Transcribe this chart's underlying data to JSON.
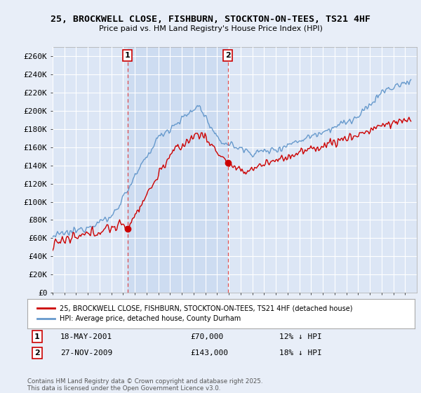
{
  "title": "25, BROCKWELL CLOSE, FISHBURN, STOCKTON-ON-TEES, TS21 4HF",
  "subtitle": "Price paid vs. HM Land Registry's House Price Index (HPI)",
  "bg_color": "#e8eef8",
  "plot_bg_color": "#dce6f5",
  "shade_color": "#c8d8f0",
  "grid_color": "#ffffff",
  "red_line_color": "#cc0000",
  "blue_line_color": "#6699cc",
  "sale1_year": 2001.38,
  "sale1_price": 70000,
  "sale2_year": 2009.91,
  "sale2_price": 143000,
  "ylim_max": 270000,
  "ylim_min": 0,
  "ytick_step": 20000,
  "legend_label_red": "25, BROCKWELL CLOSE, FISHBURN, STOCKTON-ON-TEES, TS21 4HF (detached house)",
  "legend_label_blue": "HPI: Average price, detached house, County Durham",
  "annotation1_date": "18-MAY-2001",
  "annotation1_price": "£70,000",
  "annotation1_pct": "12% ↓ HPI",
  "annotation2_date": "27-NOV-2009",
  "annotation2_price": "£143,000",
  "annotation2_pct": "18% ↓ HPI",
  "footer": "Contains HM Land Registry data © Crown copyright and database right 2025.\nThis data is licensed under the Open Government Licence v3.0.",
  "xmin": 1995,
  "xmax": 2026
}
